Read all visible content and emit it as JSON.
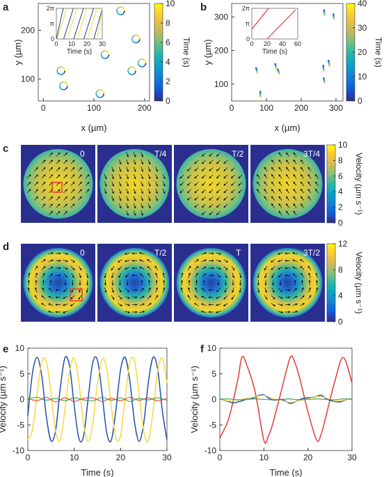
{
  "panels": {
    "a": "a",
    "b": "b",
    "c": "c",
    "d": "d",
    "e": "e",
    "f": "f"
  },
  "colorbar": {
    "colors": [
      "#352a87",
      "#0f5cdd",
      "#1481d6",
      "#06a4ca",
      "#2eb7a4",
      "#87bf77",
      "#d1bb59",
      "#fec832",
      "#f9fb0e"
    ]
  },
  "chart_data": [
    {
      "id": "a",
      "type": "scatter",
      "xlabel": "x (µm)",
      "ylabel": "y (µm)",
      "xlim": [
        -10,
        210
      ],
      "ylim": [
        55,
        255
      ],
      "xticks": [
        0,
        100,
        200
      ],
      "yticks": [
        100,
        200
      ],
      "xtick_labels": [
        "0",
        "100",
        "200"
      ],
      "ytick_labels": [
        "100",
        "200"
      ],
      "colorbar": {
        "label": "Time (s)",
        "range": [
          0,
          10
        ],
        "ticks": [
          "0",
          "2",
          "4",
          "6",
          "8",
          "10"
        ]
      },
      "rings": [
        [
          153,
          240
        ],
        [
          183,
          182
        ],
        [
          122,
          150
        ],
        [
          195,
          133
        ],
        [
          35,
          117
        ],
        [
          175,
          117
        ],
        [
          40,
          86
        ],
        [
          112,
          70
        ]
      ],
      "inset": {
        "xlabel": "Time (s)",
        "xlim": [
          0,
          30
        ],
        "ylim": [
          0,
          6.283
        ],
        "xticks": [
          "0",
          "10",
          "20",
          "30"
        ],
        "yticks": [
          "0",
          "π",
          "2π"
        ],
        "description_series": "phase sawtooth, period ~6.3 s, blue and yellow offset"
      }
    },
    {
      "id": "b",
      "type": "scatter",
      "xlabel": "x (µm)",
      "ylabel": "y (µm)",
      "xlim": [
        0,
        320
      ],
      "ylim": [
        50,
        340
      ],
      "xticks": [
        0,
        100,
        200,
        300
      ],
      "yticks": [
        100,
        200,
        300
      ],
      "xtick_labels": [
        "0",
        "100",
        "200",
        "300"
      ],
      "ytick_labels": [
        "100",
        "200",
        "300"
      ],
      "colorbar": {
        "label": "Time (s)",
        "range": [
          0,
          40
        ],
        "ticks": [
          "0",
          "10",
          "20",
          "30",
          "40"
        ]
      },
      "streaks": [
        [
          265,
          322,
          268,
          302
        ],
        [
          292,
          310,
          295,
          292
        ],
        [
          125,
          162,
          128,
          145
        ],
        [
          132,
          146,
          138,
          128
        ],
        [
          70,
          150,
          74,
          132
        ],
        [
          82,
          80,
          83,
          60
        ],
        [
          263,
          157,
          265,
          137
        ],
        [
          278,
          172,
          282,
          152
        ],
        [
          264,
          120,
          268,
          102
        ]
      ],
      "inset": {
        "xlabel": "Time (s)",
        "xlim": [
          0,
          60
        ],
        "ylim": [
          0,
          6.283
        ],
        "xticks": [
          "0",
          "20",
          "40",
          "60"
        ],
        "yticks": [
          "0",
          "π",
          "2π"
        ],
        "description_series": "phase sawtooth, red"
      }
    },
    {
      "id": "c",
      "type": "heatmap",
      "frame_labels": [
        "0",
        "T/4",
        "T/2",
        "3T/4"
      ],
      "colorbar": {
        "label": "Velocity (µm s⁻¹)",
        "range": [
          0,
          10
        ],
        "ticks": [
          "0",
          "2",
          "4",
          "6",
          "8",
          "10"
        ]
      }
    },
    {
      "id": "d",
      "type": "heatmap",
      "frame_labels": [
        "0",
        "T/2",
        "T",
        "3T/2"
      ],
      "colorbar": {
        "label": "Velocity (µm s⁻¹)",
        "range": [
          0,
          12
        ],
        "ticks": [
          "0",
          "4",
          "8",
          "12"
        ]
      }
    },
    {
      "id": "e",
      "type": "line",
      "xlabel": "Time (s)",
      "ylabel": "Velocity (µm s⁻¹)",
      "xlim": [
        0,
        30
      ],
      "ylim": [
        -10,
        10
      ],
      "xticks": [
        0,
        10,
        20,
        30
      ],
      "yticks": [
        -10,
        -5,
        0,
        5,
        10
      ],
      "xtick_labels": [
        "0",
        "10",
        "20",
        "30"
      ],
      "ytick_labels": [
        "-10",
        "-5",
        "0",
        "5",
        "10"
      ],
      "series": [
        {
          "color": "#1f4fa8",
          "x": [
            0,
            1,
            2,
            3,
            4,
            5,
            6,
            7,
            8,
            9,
            10,
            11,
            12,
            13,
            14,
            15,
            16,
            17,
            18,
            19,
            20,
            21,
            22,
            23,
            24,
            25,
            26,
            27,
            28,
            29,
            30
          ],
          "y": [
            -3.2,
            5.1,
            8.2,
            4.6,
            -3.4,
            -8.1,
            -6.0,
            2.2,
            8.1,
            6.5,
            -1.2,
            -7.6,
            -7.3,
            0.1,
            7.2,
            7.7,
            1.2,
            -6.5,
            -8.0,
            -2.0,
            5.8,
            8.2,
            3.6,
            -4.4,
            -8.2,
            -4.6,
            3.4,
            8.2,
            5.9,
            -2.2,
            -8.0
          ]
        },
        {
          "color": "#f6d83a",
          "x": [
            0,
            1,
            2,
            3,
            4,
            5,
            6,
            7,
            8,
            9,
            10,
            11,
            12,
            13,
            14,
            15,
            16,
            17,
            18,
            19,
            20,
            21,
            22,
            23,
            24,
            25,
            26,
            27,
            28,
            29,
            30
          ],
          "y": [
            -7.9,
            -5.9,
            1.0,
            7.3,
            7.4,
            1.2,
            -6.3,
            -7.9,
            -2.0,
            5.5,
            8.1,
            3.4,
            -4.6,
            -8.2,
            -4.8,
            3.0,
            7.8,
            6.1,
            -1.4,
            -7.6,
            -7.0,
            0.3,
            7.2,
            7.6,
            1.0,
            -6.3,
            -8.1,
            -2.3,
            5.6,
            8.1,
            3.2
          ]
        },
        {
          "color": "#e53935",
          "x": [
            0,
            2,
            4,
            6,
            8,
            10,
            12,
            14,
            16,
            18,
            20,
            22,
            24,
            26,
            28,
            30
          ],
          "y": [
            0.2,
            -0.3,
            0.4,
            -0.5,
            0.3,
            -0.4,
            0.2,
            0.3,
            -0.4,
            0.2,
            -0.3,
            0.4,
            -0.2,
            0.3,
            -0.3,
            0.2
          ]
        },
        {
          "color": "#3a9a3a",
          "x": [
            0,
            2,
            4,
            6,
            8,
            10,
            12,
            14,
            16,
            18,
            20,
            22,
            24,
            26,
            28,
            30
          ],
          "y": [
            0.1,
            0.4,
            -0.2,
            0.2,
            -0.3,
            0.3,
            -0.1,
            -0.3,
            0.4,
            -0.2,
            0.3,
            -0.4,
            0.2,
            -0.1,
            0.3,
            -0.2
          ]
        }
      ]
    },
    {
      "id": "f",
      "type": "line",
      "xlabel": "Time (s)",
      "ylabel": "Velocity (µm s⁻¹)",
      "xlim": [
        0,
        30
      ],
      "ylim": [
        -10,
        10
      ],
      "xticks": [
        0,
        10,
        20,
        30
      ],
      "yticks": [
        -10,
        -5,
        0,
        5,
        10
      ],
      "xtick_labels": [
        "0",
        "10",
        "20",
        "30"
      ],
      "ytick_labels": [
        "-10",
        "-5",
        "0",
        "5",
        "10"
      ],
      "series": [
        {
          "color": "#e53935",
          "x": [
            0,
            2,
            4,
            5,
            6,
            8,
            10,
            11,
            12,
            14,
            16,
            17,
            18,
            20,
            22,
            23,
            24,
            26,
            28,
            30
          ],
          "y": [
            -7.5,
            -3.8,
            3.5,
            8.2,
            7.0,
            1.5,
            -8.0,
            -7.2,
            -4.8,
            1.8,
            8.2,
            7.2,
            4.6,
            -2.4,
            -8.0,
            -6.8,
            -3.6,
            3.2,
            8.2,
            3.2
          ]
        },
        {
          "color": "#1f4fa8",
          "x": [
            0,
            1,
            2,
            3,
            4,
            5,
            6,
            7,
            8,
            9,
            10,
            11,
            12,
            13,
            14,
            15,
            16,
            17,
            18,
            19,
            20,
            21,
            22,
            23,
            24,
            25,
            26,
            27,
            28,
            29,
            30
          ],
          "y": [
            0.1,
            -0.2,
            -0.4,
            -0.7,
            -0.5,
            -0.3,
            0.0,
            0.1,
            0.4,
            0.8,
            0.9,
            0.3,
            -0.1,
            -0.1,
            0.0,
            -0.4,
            -0.8,
            -0.5,
            -0.1,
            0.2,
            0.3,
            0.4,
            0.6,
            0.8,
            0.2,
            -0.2,
            -0.4,
            -0.5,
            -0.3,
            0.0,
            0.1
          ]
        },
        {
          "color": "#f6d83a",
          "x": [
            0,
            2,
            4,
            6,
            8,
            10,
            12,
            14,
            16,
            18,
            20,
            22,
            24,
            26,
            28,
            30
          ],
          "y": [
            0.0,
            -0.3,
            -0.1,
            0.2,
            0.5,
            0.8,
            0.2,
            -0.2,
            -0.6,
            -0.2,
            0.1,
            0.6,
            0.3,
            -0.3,
            -0.2,
            0.1
          ]
        },
        {
          "color": "#3a9a3a",
          "x": [
            0,
            2,
            4,
            6,
            8,
            10,
            12,
            14,
            16,
            18,
            20,
            22,
            24,
            26,
            28,
            30
          ],
          "y": [
            0.0,
            0.1,
            -0.1,
            0.0,
            0.1,
            0.0,
            -0.1,
            0.0,
            0.1,
            -0.1,
            0.0,
            0.1,
            0.0,
            -0.1,
            0.1,
            0.0
          ]
        }
      ]
    }
  ]
}
